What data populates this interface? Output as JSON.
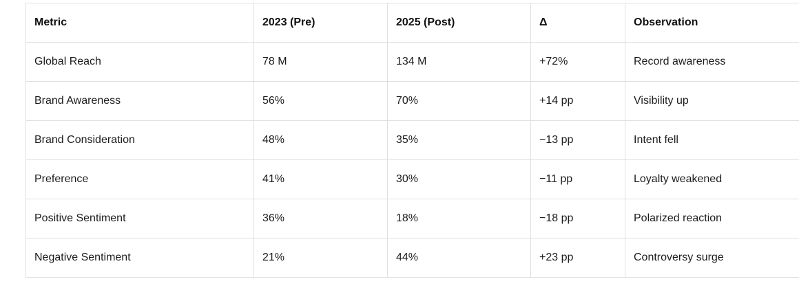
{
  "table": {
    "columns": [
      "Metric",
      "2023 (Pre)",
      "2025 (Post)",
      "Δ",
      "Observation"
    ],
    "rows": [
      [
        "Global Reach",
        "78 M",
        "134 M",
        "+72%",
        "Record awareness"
      ],
      [
        "Brand Awareness",
        "56%",
        "70%",
        "+14 pp",
        "Visibility up"
      ],
      [
        "Brand Consideration",
        "48%",
        "35%",
        "−13 pp",
        "Intent fell"
      ],
      [
        "Preference",
        "41%",
        "30%",
        "−11 pp",
        "Loyalty weakened"
      ],
      [
        "Positive Sentiment",
        "36%",
        "18%",
        "−18 pp",
        "Polarized reaction"
      ],
      [
        "Negative Sentiment",
        "21%",
        "44%",
        "+23 pp",
        "Controversy surge"
      ]
    ],
    "colors": {
      "border": "#e0e0e0",
      "text": "#1c1c1c",
      "header_text": "#111111",
      "background": "#ffffff"
    }
  }
}
